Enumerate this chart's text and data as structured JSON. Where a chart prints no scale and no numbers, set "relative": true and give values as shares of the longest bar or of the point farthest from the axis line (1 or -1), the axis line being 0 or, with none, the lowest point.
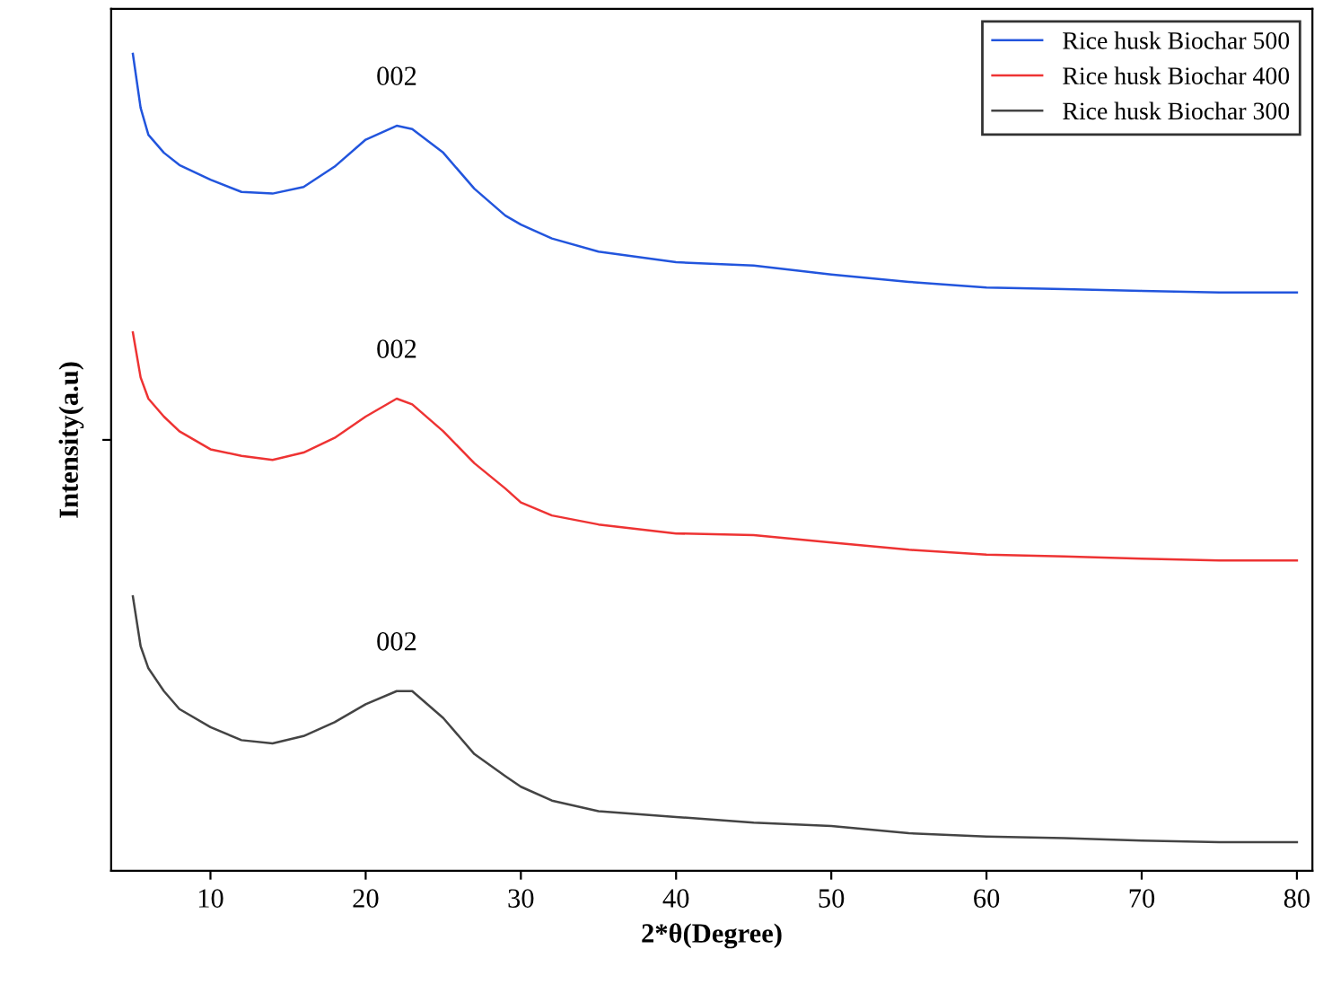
{
  "chart_data": {
    "type": "line",
    "relative": true,
    "xlabel": "2*θ(Degree)",
    "ylabel": "Intensity(a.u)",
    "x": [
      5,
      5.5,
      6,
      7,
      8,
      10,
      12,
      14,
      16,
      18,
      20,
      22,
      23,
      25,
      27,
      29,
      30,
      32,
      35,
      40,
      45,
      50,
      55,
      60,
      65,
      70,
      75,
      80
    ],
    "xlim": [
      3.6,
      81
    ],
    "xticks": [
      10,
      20,
      30,
      40,
      50,
      60,
      70,
      80
    ],
    "series": [
      {
        "name": "Rice husk Biochar 500",
        "color": "#2255dd",
        "values": [
          1.0,
          0.934,
          0.901,
          0.879,
          0.864,
          0.846,
          0.831,
          0.829,
          0.837,
          0.862,
          0.895,
          0.912,
          0.908,
          0.879,
          0.835,
          0.802,
          0.791,
          0.774,
          0.758,
          0.745,
          0.741,
          0.73,
          0.721,
          0.714,
          0.712,
          0.71,
          0.708,
          0.708
        ]
      },
      {
        "name": "Rice husk Biochar 400",
        "color": "#ee3333",
        "values": [
          0.659,
          0.604,
          0.578,
          0.556,
          0.538,
          0.516,
          0.508,
          0.503,
          0.512,
          0.53,
          0.556,
          0.578,
          0.571,
          0.538,
          0.499,
          0.468,
          0.451,
          0.435,
          0.424,
          0.413,
          0.411,
          0.402,
          0.393,
          0.387,
          0.385,
          0.382,
          0.38,
          0.38
        ]
      },
      {
        "name": "Rice husk Biochar 300",
        "color": "#444444",
        "values": [
          0.336,
          0.275,
          0.248,
          0.22,
          0.198,
          0.176,
          0.16,
          0.156,
          0.165,
          0.182,
          0.204,
          0.22,
          0.22,
          0.187,
          0.143,
          0.116,
          0.103,
          0.086,
          0.073,
          0.066,
          0.059,
          0.055,
          0.046,
          0.042,
          0.04,
          0.037,
          0.035,
          0.035
        ]
      }
    ],
    "annotations": [
      "002",
      "002",
      "002"
    ],
    "legend": "top right",
    "grid": false
  }
}
